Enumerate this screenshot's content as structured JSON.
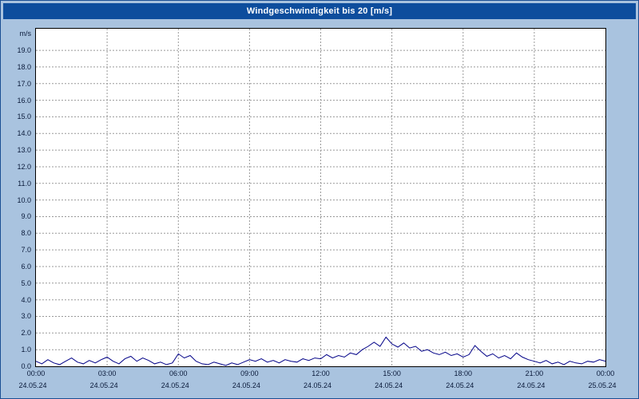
{
  "title": "Windgeschwindigkeit bis 20 [m/s]",
  "colors": {
    "background": "#a9c3df",
    "titlebar": "#0d4d9d",
    "title_text": "#ffffff",
    "plot_background": "#ffffff",
    "plot_border": "#000000",
    "grid": "#999999",
    "line": "#000087",
    "tick_text": "#0a1a3a"
  },
  "chart_data": {
    "type": "line",
    "title": "Windgeschwindigkeit bis 20 [m/s]",
    "series_name": "Windgeschwindigkeit",
    "ylabel": "m/s",
    "ylim": [
      0,
      20.3
    ],
    "grid": "dashed",
    "legend": "none",
    "y_tick_step": 1.0,
    "y_tick_labels": [
      "0.0",
      "1.0",
      "2.0",
      "3.0",
      "4.0",
      "5.0",
      "6.0",
      "7.0",
      "8.0",
      "9.0",
      "10.0",
      "11.0",
      "12.0",
      "13.0",
      "14.0",
      "15.0",
      "16.0",
      "17.0",
      "18.0",
      "19.0"
    ],
    "x_range_hours": [
      0,
      24
    ],
    "x_grid_step_hours": 3,
    "x_ticks": [
      {
        "time": "00:00",
        "date": "24.05.24"
      },
      {
        "time": "03:00",
        "date": "24.05.24"
      },
      {
        "time": "06:00",
        "date": "24.05.24"
      },
      {
        "time": "09:00",
        "date": "24.05.24"
      },
      {
        "time": "12:00",
        "date": "24.05.24"
      },
      {
        "time": "15:00",
        "date": "24.05.24"
      },
      {
        "time": "18:00",
        "date": "24.05.24"
      },
      {
        "time": "21:00",
        "date": "24.05.24"
      },
      {
        "time": "00:00",
        "date": "25.05.24"
      }
    ],
    "x_start_hour": 0,
    "x_step_hours": 0.25,
    "values": [
      0.3,
      0.15,
      0.4,
      0.2,
      0.1,
      0.3,
      0.5,
      0.25,
      0.15,
      0.35,
      0.2,
      0.4,
      0.55,
      0.3,
      0.15,
      0.45,
      0.6,
      0.3,
      0.5,
      0.35,
      0.15,
      0.25,
      0.1,
      0.2,
      0.75,
      0.5,
      0.65,
      0.3,
      0.15,
      0.1,
      0.25,
      0.15,
      0.05,
      0.2,
      0.1,
      0.25,
      0.4,
      0.3,
      0.45,
      0.25,
      0.35,
      0.2,
      0.4,
      0.3,
      0.25,
      0.45,
      0.35,
      0.5,
      0.45,
      0.7,
      0.5,
      0.65,
      0.55,
      0.8,
      0.7,
      1.0,
      1.2,
      1.45,
      1.2,
      1.75,
      1.35,
      1.15,
      1.4,
      1.1,
      1.2,
      0.9,
      1.0,
      0.8,
      0.7,
      0.85,
      0.65,
      0.75,
      0.55,
      0.7,
      1.25,
      0.9,
      0.6,
      0.75,
      0.5,
      0.65,
      0.45,
      0.8,
      0.55,
      0.4,
      0.3,
      0.2,
      0.35,
      0.15,
      0.25,
      0.1,
      0.3,
      0.2,
      0.15,
      0.3,
      0.25,
      0.4,
      0.3
    ]
  }
}
